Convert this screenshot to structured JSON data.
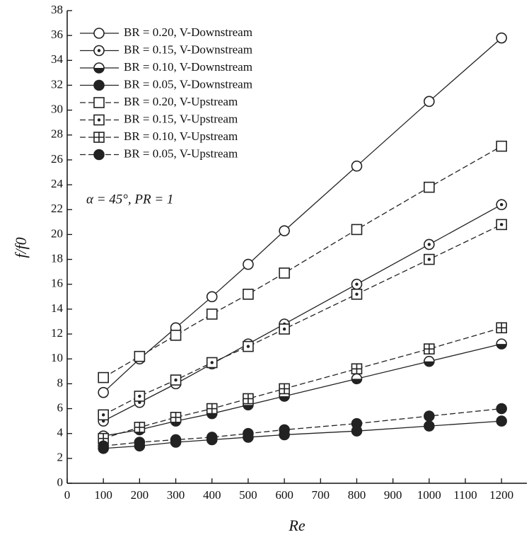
{
  "chart_data": {
    "type": "line",
    "x_label": "Re",
    "y_label": "f/f0",
    "annotation": "α = 45°, PR = 1",
    "x": [
      100,
      200,
      300,
      400,
      500,
      600,
      800,
      1000,
      1200
    ],
    "xlim": [
      0,
      1270
    ],
    "xticks": [
      0,
      100,
      200,
      300,
      400,
      500,
      600,
      700,
      800,
      900,
      1000,
      1100,
      1200
    ],
    "ylim": [
      0,
      38
    ],
    "yticks": [
      0,
      2,
      4,
      6,
      8,
      10,
      12,
      14,
      16,
      18,
      20,
      22,
      24,
      26,
      28,
      30,
      32,
      34,
      36,
      38
    ],
    "grid": false,
    "legend": "upper left",
    "series": [
      {
        "name": "BR = 0.20, V-Downstream",
        "color": "#222222",
        "marker": "circle-open",
        "line_style": "solid",
        "values": [
          7.3,
          10,
          12.5,
          15,
          17.6,
          20.3,
          25.5,
          30.7,
          35.8
        ]
      },
      {
        "name": "BR = 0.15, V-Downstream",
        "color": "#222222",
        "marker": "circle-dot",
        "line_style": "solid",
        "values": [
          5,
          6.5,
          8,
          9.6,
          11.2,
          12.8,
          16,
          19.2,
          22.4
        ]
      },
      {
        "name": "BR = 0.10, V-Downstream",
        "color": "#222222",
        "marker": "circle-half",
        "line_style": "solid",
        "values": [
          3.8,
          4.3,
          5,
          5.6,
          6.3,
          7,
          8.4,
          9.8,
          11.2
        ]
      },
      {
        "name": "BR = 0.05, V-Downstream",
        "color": "#222222",
        "marker": "circle-filled",
        "line_style": "solid",
        "values": [
          2.8,
          3,
          3.3,
          3.5,
          3.7,
          3.9,
          4.2,
          4.6,
          5
        ]
      },
      {
        "name": "BR = 0.20, V-Upstream",
        "color": "#222222",
        "marker": "square-open",
        "line_style": "dashed",
        "values": [
          8.5,
          10.2,
          11.9,
          13.6,
          15.2,
          16.9,
          20.4,
          23.8,
          27.1
        ]
      },
      {
        "name": "BR = 0.15, V-Upstream",
        "color": "#222222",
        "marker": "square-dot",
        "line_style": "dashed",
        "values": [
          5.5,
          7,
          8.3,
          9.7,
          11,
          12.4,
          15.2,
          18,
          20.8
        ]
      },
      {
        "name": "BR = 0.10, V-Upstream",
        "color": "#222222",
        "marker": "square-cross",
        "line_style": "dashed",
        "values": [
          3.6,
          4.5,
          5.3,
          6,
          6.8,
          7.6,
          9.2,
          10.8,
          12.5
        ]
      },
      {
        "name": "BR = 0.05, V-Upstream",
        "color": "#222222",
        "marker": "circle-filled",
        "line_style": "dashed",
        "values": [
          3,
          3.3,
          3.5,
          3.7,
          4,
          4.3,
          4.8,
          5.4,
          6
        ]
      }
    ]
  }
}
